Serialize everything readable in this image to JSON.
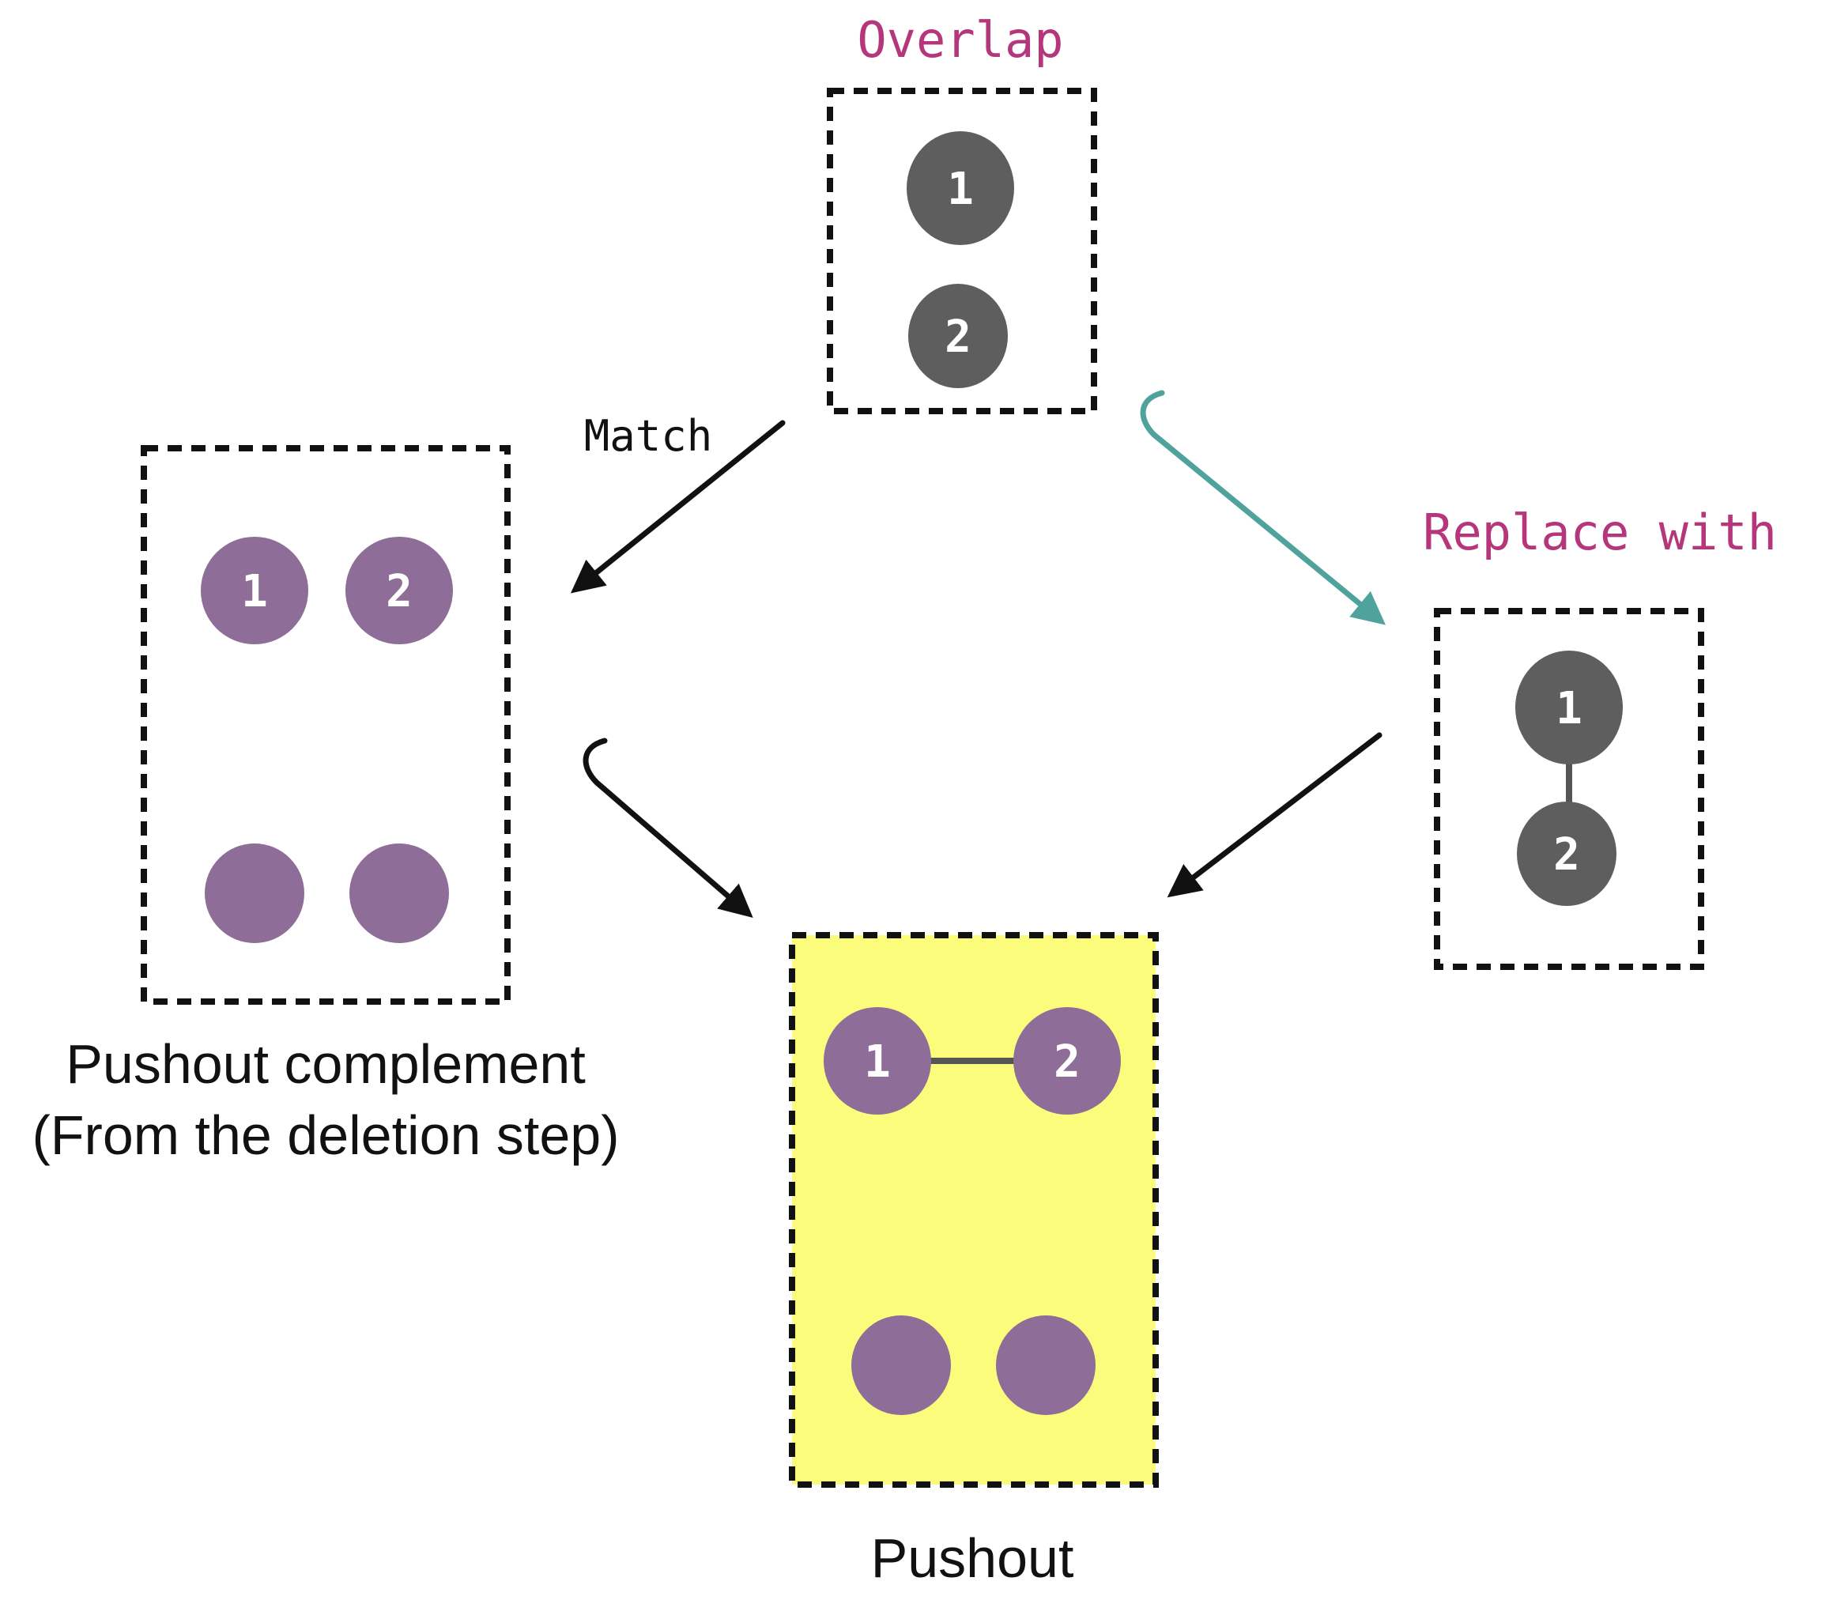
{
  "colors": {
    "label_magenta": "#B5367A",
    "label_black": "#111111",
    "node_dark": "#5E5E5E",
    "node_purple": "#8E6D98",
    "node_text": "#FFFFFF",
    "box_border": "#111111",
    "pushout_fill": "#FCFC7C",
    "arrow_black": "#111111",
    "arrow_teal": "#4FA39C",
    "edge": "#555555"
  },
  "labels": {
    "overlap": "Overlap",
    "match": "Match",
    "replace_with": "Replace with",
    "pushout_complement_line1": "Pushout complement",
    "pushout_complement_line2": "(From the deletion step)",
    "pushout": "Pushout"
  },
  "overlap_box": {
    "nodes": [
      {
        "label": "1"
      },
      {
        "label": "2"
      }
    ]
  },
  "pushout_complement_box": {
    "nodes": [
      {
        "label": "1"
      },
      {
        "label": "2"
      },
      {
        "label": ""
      },
      {
        "label": ""
      }
    ]
  },
  "replace_box": {
    "nodes": [
      {
        "label": "1"
      },
      {
        "label": "2"
      }
    ],
    "edges": [
      {
        "from": "1",
        "to": "2"
      }
    ]
  },
  "pushout_box": {
    "nodes": [
      {
        "label": "1"
      },
      {
        "label": "2"
      },
      {
        "label": ""
      },
      {
        "label": ""
      }
    ],
    "edges": [
      {
        "from": "1",
        "to": "2"
      }
    ]
  }
}
